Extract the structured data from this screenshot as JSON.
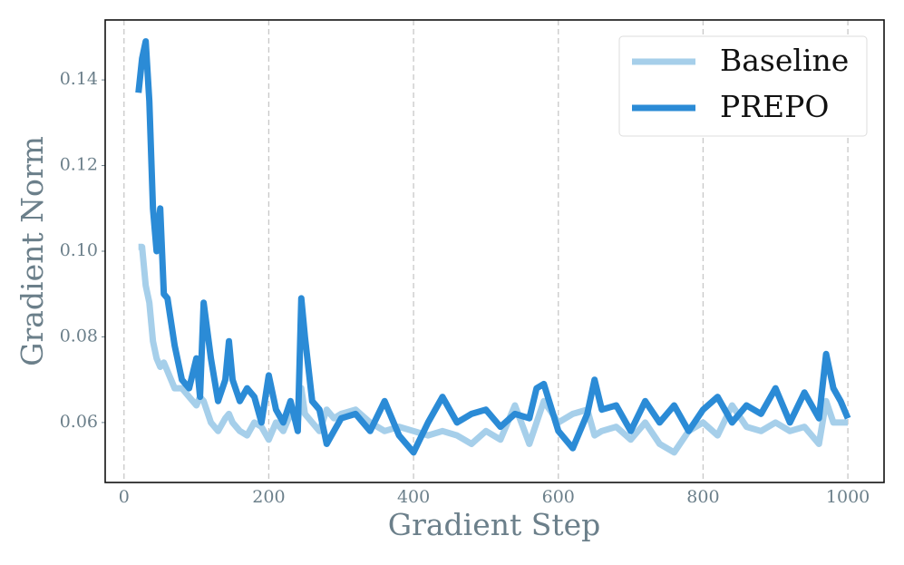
{
  "chart_data": {
    "type": "line",
    "xlabel": "Gradient Step",
    "ylabel": "Gradient Norm",
    "x": [
      20,
      25,
      30,
      35,
      40,
      45,
      50,
      55,
      60,
      70,
      80,
      90,
      100,
      105,
      110,
      120,
      130,
      140,
      145,
      150,
      160,
      170,
      180,
      190,
      200,
      210,
      220,
      230,
      240,
      245,
      250,
      260,
      270,
      280,
      290,
      300,
      320,
      340,
      360,
      380,
      400,
      420,
      440,
      460,
      480,
      500,
      520,
      540,
      560,
      570,
      580,
      600,
      620,
      640,
      650,
      660,
      680,
      700,
      720,
      740,
      760,
      780,
      800,
      820,
      840,
      860,
      880,
      900,
      920,
      940,
      960,
      970,
      980,
      990,
      1000
    ],
    "series": [
      {
        "name": "Baseline",
        "color": "#a6cfea",
        "values": [
          0.101,
          0.101,
          0.092,
          0.088,
          0.079,
          0.075,
          0.073,
          0.074,
          0.072,
          0.068,
          0.068,
          0.066,
          0.064,
          0.066,
          0.065,
          0.06,
          0.058,
          0.061,
          0.062,
          0.06,
          0.058,
          0.057,
          0.06,
          0.059,
          0.056,
          0.06,
          0.058,
          0.062,
          0.06,
          0.068,
          0.062,
          0.06,
          0.058,
          0.063,
          0.061,
          0.062,
          0.063,
          0.06,
          0.058,
          0.059,
          0.058,
          0.057,
          0.058,
          0.057,
          0.055,
          0.058,
          0.056,
          0.064,
          0.055,
          0.06,
          0.065,
          0.06,
          0.062,
          0.063,
          0.057,
          0.058,
          0.059,
          0.056,
          0.06,
          0.055,
          0.053,
          0.058,
          0.06,
          0.057,
          0.064,
          0.059,
          0.058,
          0.06,
          0.058,
          0.059,
          0.055,
          0.065,
          0.06,
          0.06,
          0.06
        ]
      },
      {
        "name": "PREPO",
        "color": "#2b8bd6",
        "values": [
          0.137,
          0.145,
          0.149,
          0.135,
          0.11,
          0.1,
          0.11,
          0.09,
          0.089,
          0.078,
          0.07,
          0.068,
          0.075,
          0.066,
          0.088,
          0.075,
          0.065,
          0.07,
          0.079,
          0.07,
          0.065,
          0.068,
          0.066,
          0.06,
          0.071,
          0.063,
          0.06,
          0.065,
          0.058,
          0.089,
          0.08,
          0.065,
          0.063,
          0.055,
          0.058,
          0.061,
          0.062,
          0.058,
          0.065,
          0.057,
          0.053,
          0.06,
          0.066,
          0.06,
          0.062,
          0.063,
          0.059,
          0.062,
          0.061,
          0.068,
          0.069,
          0.058,
          0.054,
          0.062,
          0.07,
          0.063,
          0.064,
          0.058,
          0.065,
          0.06,
          0.064,
          0.058,
          0.063,
          0.066,
          0.06,
          0.064,
          0.062,
          0.068,
          0.06,
          0.067,
          0.061,
          0.076,
          0.068,
          0.065,
          0.061
        ]
      }
    ],
    "xlim": [
      -26,
      1050
    ],
    "ylim": [
      0.046,
      0.154
    ],
    "xticks": [
      0,
      200,
      400,
      600,
      800,
      1000
    ],
    "yticks": [
      0.06,
      0.08,
      {
        "value": 0.1,
        "label": "0.10"
      },
      0.12,
      0.14
    ],
    "grid": "x",
    "legend": "upper right"
  }
}
